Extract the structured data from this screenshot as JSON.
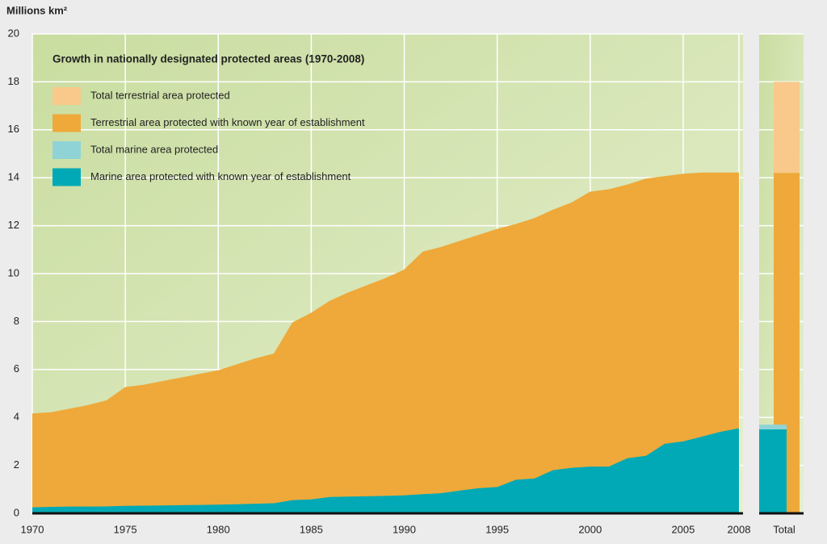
{
  "chart_data": {
    "type": "area",
    "title": "Growth in nationally designated protected areas (1970-2008)",
    "y_label": "Millions km²",
    "x": [
      1970,
      1971,
      1972,
      1973,
      1974,
      1975,
      1976,
      1977,
      1978,
      1979,
      1980,
      1981,
      1982,
      1983,
      1984,
      1985,
      1986,
      1987,
      1988,
      1989,
      1990,
      1991,
      1992,
      1993,
      1994,
      1995,
      1996,
      1997,
      1998,
      1999,
      2000,
      2001,
      2002,
      2003,
      2004,
      2005,
      2006,
      2007,
      2008
    ],
    "xlim": [
      1970,
      2008
    ],
    "xticks": [
      1970,
      1975,
      1980,
      1985,
      1990,
      1995,
      2000,
      2005,
      2008
    ],
    "ylim": [
      0,
      20
    ],
    "yticks": [
      0,
      2,
      4,
      6,
      8,
      10,
      12,
      14,
      16,
      18,
      20
    ],
    "grid": true,
    "stacked": true,
    "series": [
      {
        "name": "Marine area protected with known year of establishment",
        "color": "#00a9b5",
        "values": [
          0.25,
          0.27,
          0.28,
          0.28,
          0.29,
          0.31,
          0.32,
          0.33,
          0.34,
          0.35,
          0.36,
          0.38,
          0.4,
          0.42,
          0.55,
          0.58,
          0.68,
          0.7,
          0.71,
          0.73,
          0.75,
          0.8,
          0.84,
          0.95,
          1.05,
          1.1,
          1.4,
          1.45,
          1.8,
          1.9,
          1.95,
          1.95,
          2.3,
          2.4,
          2.9,
          3.0,
          3.2,
          3.4,
          3.55
        ],
        "total": 3.5
      },
      {
        "name": "Terrestrial area protected with known  year of establishment",
        "color": "#eea93a",
        "values": [
          3.9,
          3.93,
          4.07,
          4.22,
          4.41,
          4.94,
          5.03,
          5.17,
          5.31,
          5.45,
          5.59,
          5.82,
          6.05,
          6.23,
          7.4,
          7.77,
          8.17,
          8.5,
          8.79,
          9.07,
          9.4,
          10.1,
          10.26,
          10.4,
          10.55,
          10.75,
          10.65,
          10.85,
          10.85,
          11.05,
          11.45,
          11.55,
          11.4,
          11.55,
          11.15,
          11.15,
          11.0,
          10.8,
          10.65
        ],
        "total": 14.2
      }
    ],
    "totals": {
      "label": "Total",
      "series": [
        {
          "name": "Total marine area protected",
          "color": "#8fd3d6",
          "value": 3.7
        },
        {
          "name": "Total terrestrial area protected",
          "color": "#f8c98a",
          "value": 18.0
        }
      ]
    }
  }
}
